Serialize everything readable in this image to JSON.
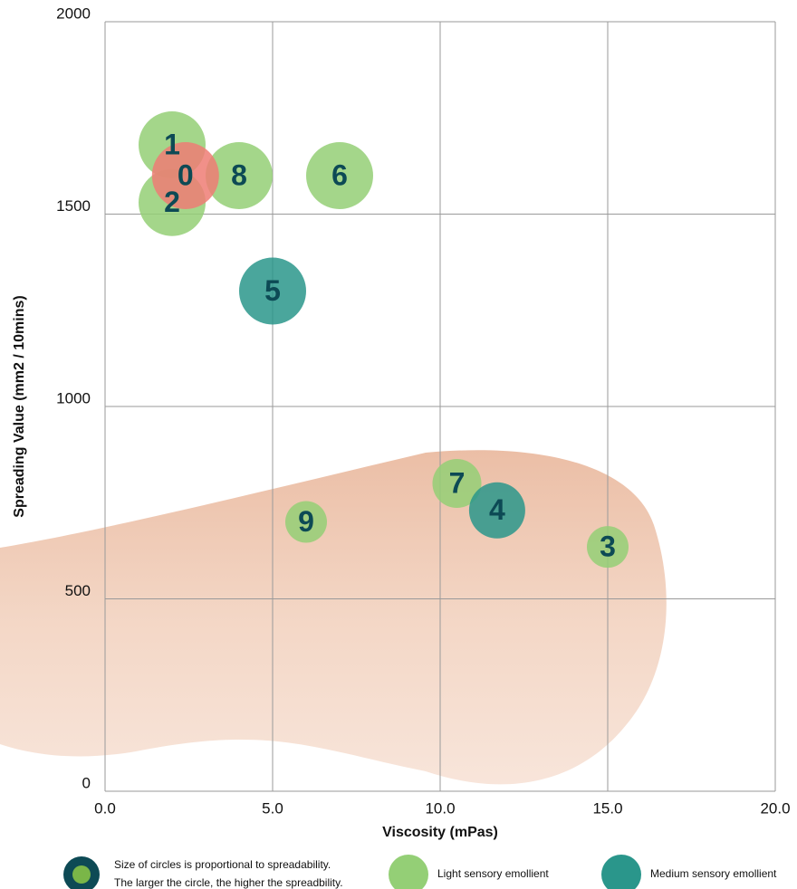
{
  "chart_data": {
    "type": "scatter",
    "x_label": "Viscosity (mPas)",
    "y_label": "Spreading Value (mm2 / 10mins)",
    "xlim": [
      0,
      20
    ],
    "ylim": [
      0,
      2000
    ],
    "xticks": [
      {
        "value": 0,
        "label": "0.0"
      },
      {
        "value": 5,
        "label": "5.0"
      },
      {
        "value": 10,
        "label": "10.0"
      },
      {
        "value": 15,
        "label": "15.0"
      },
      {
        "value": 20,
        "label": "20.0"
      }
    ],
    "yticks": [
      0,
      500,
      1000,
      1500,
      2000
    ],
    "grid": true,
    "size_note": [
      "Size of circles is proportional to spreadability.",
      "The larger the circle, the higher the spreadbility."
    ],
    "series": [
      {
        "name": "Light sensory emollient",
        "color": "#94cf76",
        "labels": [
          "1",
          "2",
          "8",
          "6",
          "7",
          "9",
          "3"
        ],
        "x": [
          2.0,
          2.0,
          4.0,
          7.0,
          10.5,
          6.0,
          15.0
        ],
        "values": [
          1680,
          1530,
          1600,
          1600,
          800,
          700,
          635
        ],
        "sizes": [
          37,
          37,
          37,
          37,
          27,
          23,
          23
        ]
      },
      {
        "name": "Medium sensory emollient",
        "color": "#2a968b",
        "labels": [
          "5",
          "4"
        ],
        "x": [
          5.0,
          11.7
        ],
        "values": [
          1300,
          730
        ],
        "sizes": [
          37,
          31
        ]
      },
      {
        "color": "#ee7c74",
        "labels": [
          "0"
        ],
        "x": [
          2.4
        ],
        "values": [
          1600
        ],
        "sizes": [
          37
        ]
      }
    ]
  }
}
